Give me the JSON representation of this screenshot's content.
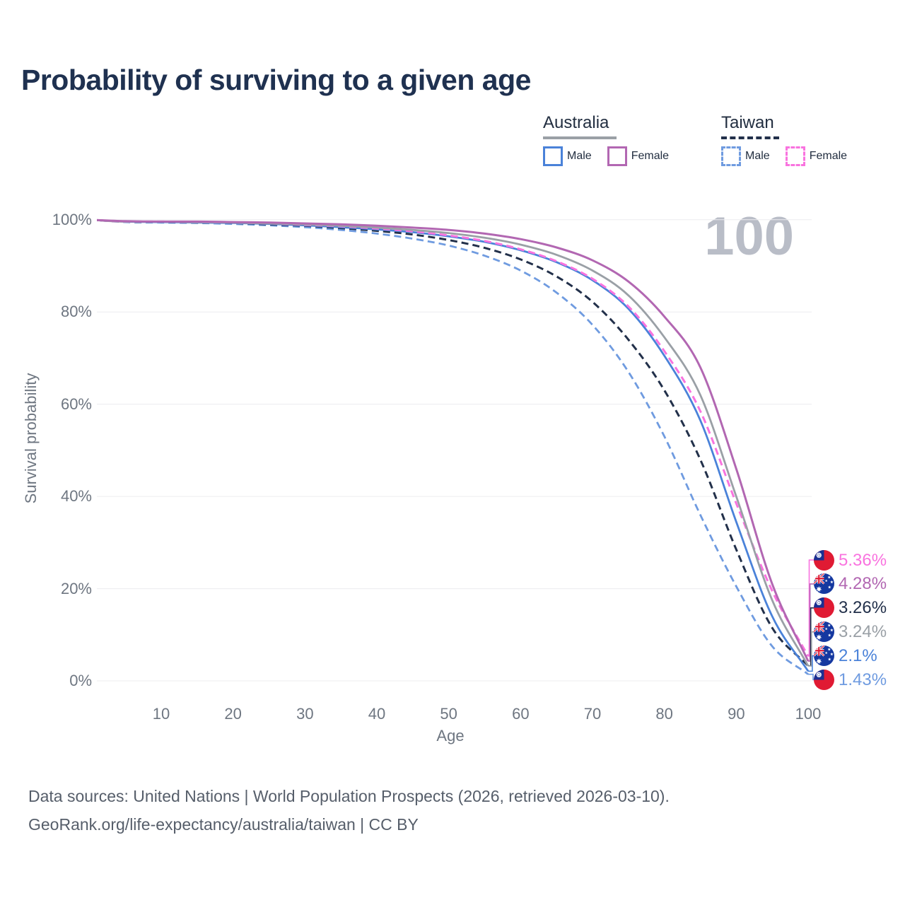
{
  "header": {
    "title": "Probability of surviving to a given age"
  },
  "watermark": "100",
  "legend": {
    "groups": [
      {
        "id": "australia",
        "label": "Australia",
        "underline": "solid",
        "underline_series": "au_all",
        "items": [
          {
            "label": "Male",
            "series": "au_male"
          },
          {
            "label": "Female",
            "series": "au_female"
          }
        ]
      },
      {
        "id": "taiwan",
        "label": "Taiwan",
        "underline": "dashed",
        "underline_series": "tw_all",
        "items": [
          {
            "label": "Male",
            "series": "tw_male"
          },
          {
            "label": "Female",
            "series": "tw_female"
          }
        ]
      }
    ]
  },
  "chart_data": {
    "type": "line",
    "title": "Probability of surviving to a given age",
    "xlabel": "Age",
    "ylabel": "Survival probability",
    "xlim": [
      0,
      100
    ],
    "ylim": [
      0,
      100
    ],
    "grid": true,
    "legend_position": "top-right",
    "x_ticks": [
      10,
      20,
      30,
      40,
      50,
      60,
      70,
      80,
      90,
      100
    ],
    "y_ticks": [
      0,
      20,
      40,
      60,
      80,
      100
    ],
    "y_tick_suffix": "%",
    "ages": [
      0,
      5,
      10,
      15,
      20,
      25,
      30,
      35,
      40,
      45,
      50,
      55,
      60,
      65,
      70,
      75,
      80,
      85,
      90,
      95,
      100
    ],
    "series": [
      {
        "id": "tw_male",
        "name": "Taiwan Male",
        "country": "taiwan",
        "sex": "male",
        "color": "#6f9be0",
        "dash": "dashed",
        "width": 2.8,
        "values": [
          100,
          99.5,
          99.4,
          99.3,
          99.1,
          98.8,
          98.4,
          97.8,
          97.0,
          95.9,
          94.4,
          92.2,
          89.0,
          84.2,
          77.2,
          67.0,
          53.0,
          36.0,
          20.5,
          7.5,
          1.43
        ],
        "end_value_label": "1.43%"
      },
      {
        "id": "tw_all",
        "name": "Taiwan",
        "country": "taiwan",
        "sex": "all",
        "color": "#22304a",
        "dash": "dashed",
        "width": 3,
        "values": [
          100,
          99.6,
          99.5,
          99.4,
          99.3,
          99.0,
          98.7,
          98.2,
          97.6,
          96.8,
          95.6,
          93.9,
          91.4,
          87.7,
          82.2,
          74.0,
          63.0,
          48.0,
          28.5,
          11.5,
          3.26
        ],
        "end_value_label": "3.26%"
      },
      {
        "id": "au_male",
        "name": "Australia Male",
        "country": "australia",
        "sex": "male",
        "color": "#4a82d9",
        "dash": "solid",
        "width": 2.8,
        "values": [
          100,
          99.6,
          99.5,
          99.4,
          99.3,
          99.1,
          98.8,
          98.4,
          97.9,
          97.3,
          96.4,
          95.2,
          93.4,
          90.8,
          86.9,
          80.7,
          70.5,
          56.5,
          34.5,
          14.0,
          2.1
        ],
        "end_value_label": "2.1%"
      },
      {
        "id": "tw_female",
        "name": "Taiwan Female",
        "country": "taiwan",
        "sex": "female",
        "color": "#f973df",
        "dash": "dashed",
        "width": 3,
        "values": [
          100,
          99.6,
          99.6,
          99.5,
          99.4,
          99.2,
          98.9,
          98.6,
          98.1,
          97.5,
          96.6,
          95.4,
          93.6,
          91.0,
          87.2,
          81.2,
          71.5,
          58.5,
          38.5,
          19.5,
          5.36
        ],
        "end_value_label": "5.36%"
      },
      {
        "id": "au_all",
        "name": "Australia",
        "country": "australia",
        "sex": "all",
        "color": "#9aa0a6",
        "dash": "solid",
        "width": 2.8,
        "values": [
          100,
          99.6,
          99.6,
          99.5,
          99.4,
          99.2,
          99.0,
          98.7,
          98.3,
          97.8,
          97.1,
          96.1,
          94.6,
          92.4,
          89.0,
          83.6,
          74.5,
          62.0,
          40.0,
          17.5,
          3.24
        ],
        "end_value_label": "3.24%"
      },
      {
        "id": "au_female",
        "name": "Australia Female",
        "country": "australia",
        "sex": "female",
        "color": "#b267b2",
        "dash": "solid",
        "width": 3,
        "values": [
          100,
          99.7,
          99.6,
          99.6,
          99.5,
          99.4,
          99.2,
          99.0,
          98.7,
          98.3,
          97.8,
          97.0,
          95.8,
          94.0,
          91.2,
          86.6,
          79.0,
          68.0,
          46.0,
          21.0,
          4.28
        ],
        "end_value_label": "4.28%"
      }
    ]
  },
  "end_labels": [
    {
      "series": "tw_female",
      "flag": "taiwan",
      "value": "5.36%"
    },
    {
      "series": "au_female",
      "flag": "australia",
      "value": "4.28%"
    },
    {
      "series": "tw_all",
      "flag": "taiwan",
      "value": "3.26%"
    },
    {
      "series": "au_all",
      "flag": "australia",
      "value": "3.24%"
    },
    {
      "series": "au_male",
      "flag": "australia",
      "value": "2.1%"
    },
    {
      "series": "tw_male",
      "flag": "taiwan",
      "value": "1.43%"
    }
  ],
  "flags": {
    "taiwan": {
      "red": "#e01a33",
      "blue": "#1a2f92"
    },
    "australia": {
      "blue": "#1538a0",
      "red": "#e01a33"
    }
  },
  "colors": {
    "title": "#1f3150",
    "legend_text": "#222e40",
    "gridline": "#ececef",
    "tick_text": "#6e7681",
    "axis_title": "#6e7681",
    "watermark": "#b9bdc7",
    "footer": "#565e6a"
  },
  "footer": {
    "line1": "Data sources: United Nations | World Population Prospects (2026, retrieved 2026-03-10).",
    "line2": "GeoRank.org/life-expectancy/australia/taiwan | CC BY"
  }
}
